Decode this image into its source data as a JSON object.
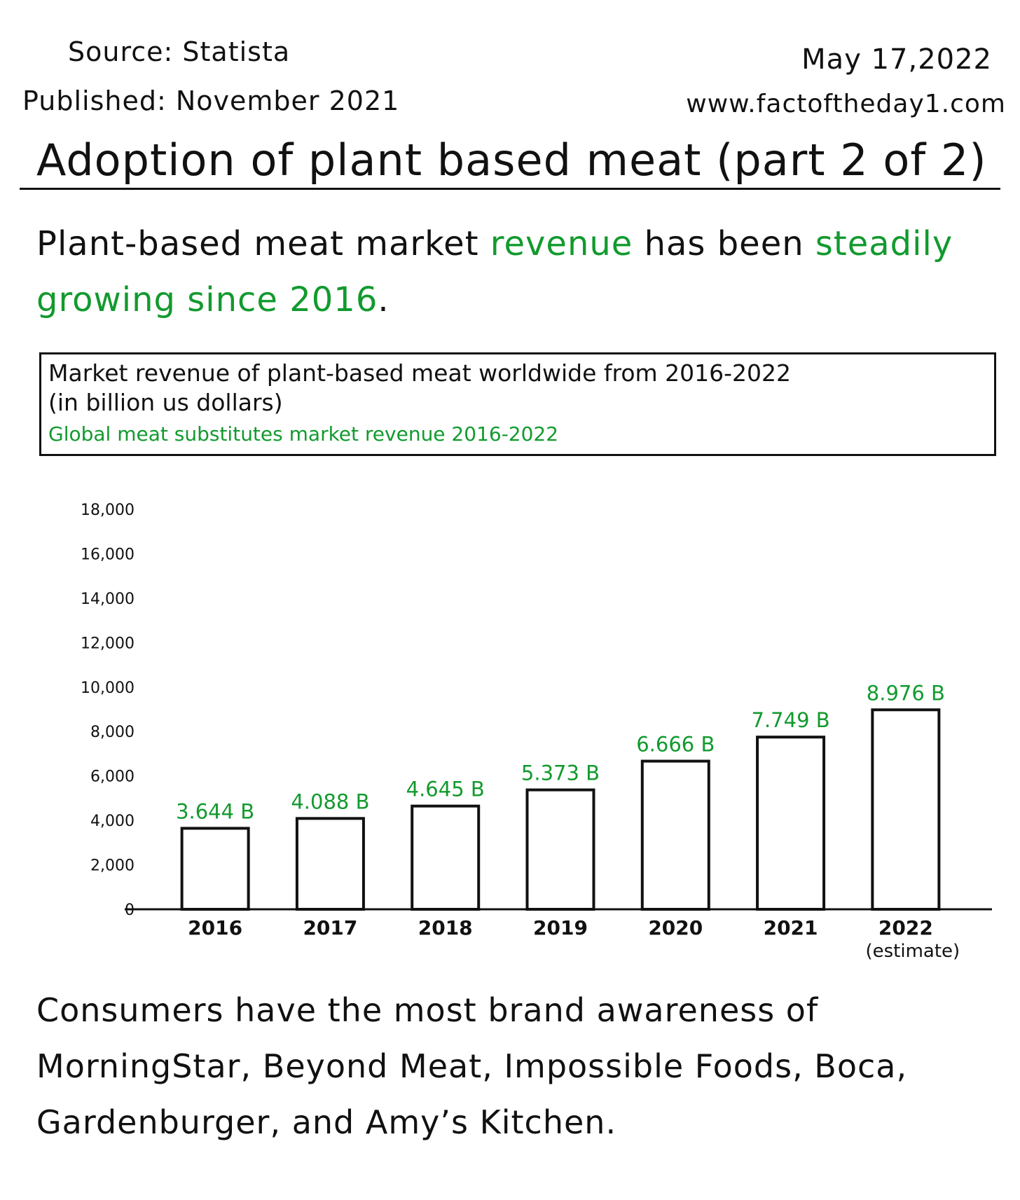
{
  "header": {
    "source": "Source: Statista",
    "published": "Published: November 2021",
    "date": "May 17,2022",
    "website": "www.factoftheday1.com"
  },
  "title": "Adoption of plant based meat (part 2 of 2)",
  "lead": {
    "part1": "Plant-based meat market ",
    "part2": "revenue",
    "part3": " has been ",
    "part4": "steadily growing since 2016",
    "part5": "."
  },
  "chart_box": {
    "title": "Market revenue of plant-based meat worldwide  from 2016-2022",
    "subtitle": "(in billion us dollars)",
    "source_note": "Global meat substitutes market revenue 2016-2022"
  },
  "chart_data": {
    "type": "bar",
    "categories": [
      "2016",
      "2017",
      "2018",
      "2019",
      "2020",
      "2021",
      "2022"
    ],
    "category_notes": [
      "",
      "",
      "",
      "",
      "",
      "",
      "(estimate)"
    ],
    "values": [
      3644,
      4088,
      4645,
      5373,
      6666,
      7749,
      8976
    ],
    "data_labels": [
      "3.644 B",
      "4.088 B",
      "4.645 B",
      "5.373 B",
      "6.666 B",
      "7.749 B",
      "8.976 B"
    ],
    "yticks": [
      "0",
      "2,000",
      "4,000",
      "6,000",
      "8,000",
      "10,000",
      "12,000",
      "14,000",
      "16,000",
      "18,000"
    ],
    "ylim": [
      0,
      18000
    ],
    "xlabel": "",
    "ylabel": "",
    "grid": false,
    "colors": {
      "bar_fill": "#ffffff",
      "bar_stroke": "#111111",
      "label": "#129a2e"
    }
  },
  "closing": "Consumers have the most brand awareness of MorningStar, Beyond Meat, Impossible Foods, Boca, Gardenburger, and Amy’s Kitchen."
}
